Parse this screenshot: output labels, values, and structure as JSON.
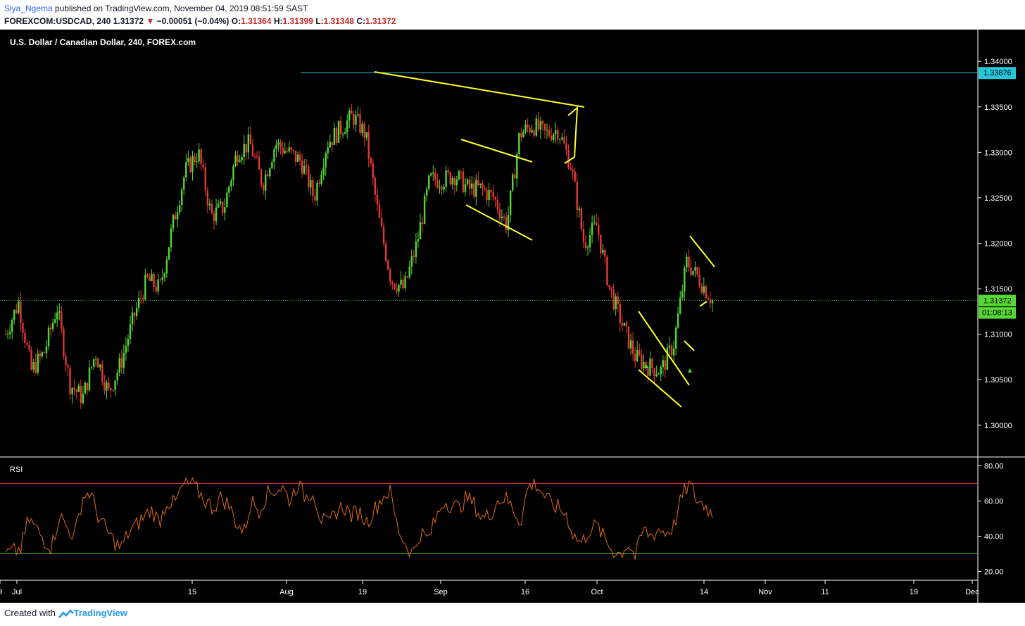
{
  "header": {
    "author": "Siya_Ngema",
    "published": "published on TradingView.com, November 04, 2019 08:51:59 SAST",
    "symbol": "FOREXCOM:USDCAD, 240",
    "last": "1.31372",
    "arrow": "▼",
    "change": "−0.00051 (−0.04%)",
    "o_label": "O:",
    "o_value": "1.31364",
    "h_label": "H:",
    "h_value": "1.31399",
    "l_label": "L:",
    "l_value": "1.31348",
    "c_label": "C:",
    "c_value": "1.31372"
  },
  "chart_data": [
    {
      "type": "candlestick",
      "title": "U.S. Dollar / Canadian Dollar, 240, FOREX.com",
      "ylim": [
        1.2965,
        1.3435
      ],
      "y_ticks": [
        "1.34000",
        "1.33500",
        "1.33000",
        "1.32500",
        "1.32000",
        "1.31500",
        "1.31000",
        "1.30500",
        "1.30000"
      ],
      "y_tick_values": [
        1.34,
        1.335,
        1.33,
        1.325,
        1.32,
        1.315,
        1.31,
        1.305,
        1.3
      ],
      "x_ticks": [
        "Jul",
        "15",
        "Aug",
        "19",
        "Sep",
        "16",
        "Oct",
        "14",
        "Nov",
        "11",
        "19",
        "Dec",
        "9"
      ],
      "horizontal_line": {
        "value": 1.33876,
        "label": "1.33876",
        "color": "#26c6da"
      },
      "last_price": {
        "value": 1.31372,
        "label": "1.31372",
        "countdown": "01:08:13",
        "color": "#26c6da"
      },
      "colors": {
        "up": "#55d636",
        "down": "#e53935",
        "background": "#000000",
        "annotation": "#ffff26"
      },
      "approx_path": [
        {
          "x": "Jul 01",
          "y": 1.31
        },
        {
          "x": "Jul 03",
          "y": 1.3135
        },
        {
          "x": "Jul 05",
          "y": 1.306
        },
        {
          "x": "Jul 08",
          "y": 1.308
        },
        {
          "x": "Jul 10",
          "y": 1.313
        },
        {
          "x": "Jul 12",
          "y": 1.3045
        },
        {
          "x": "Jul 15",
          "y": 1.303
        },
        {
          "x": "Jul 17",
          "y": 1.308
        },
        {
          "x": "Jul 19",
          "y": 1.3035
        },
        {
          "x": "Jul 22",
          "y": 1.307
        },
        {
          "x": "Jul 24",
          "y": 1.312
        },
        {
          "x": "Jul 26",
          "y": 1.316
        },
        {
          "x": "Jul 29",
          "y": 1.315
        },
        {
          "x": "Aug 01",
          "y": 1.322
        },
        {
          "x": "Aug 03",
          "y": 1.328
        },
        {
          "x": "Aug 05",
          "y": 1.33
        },
        {
          "x": "Aug 07",
          "y": 1.323
        },
        {
          "x": "Aug 09",
          "y": 1.324
        },
        {
          "x": "Aug 12",
          "y": 1.33
        },
        {
          "x": "Aug 14",
          "y": 1.331
        },
        {
          "x": "Aug 16",
          "y": 1.3265
        },
        {
          "x": "Aug 19",
          "y": 1.331
        },
        {
          "x": "Aug 21",
          "y": 1.33
        },
        {
          "x": "Aug 23",
          "y": 1.329
        },
        {
          "x": "Aug 26",
          "y": 1.325
        },
        {
          "x": "Aug 28",
          "y": 1.331
        },
        {
          "x": "Aug 30",
          "y": 1.3325
        },
        {
          "x": "Sep 01",
          "y": 1.334
        },
        {
          "x": "Sep 03",
          "y": 1.332
        },
        {
          "x": "Sep 05",
          "y": 1.323
        },
        {
          "x": "Sep 09",
          "y": 1.316
        },
        {
          "x": "Sep 11",
          "y": 1.315
        },
        {
          "x": "Sep 13",
          "y": 1.32
        },
        {
          "x": "Sep 16",
          "y": 1.327
        },
        {
          "x": "Sep 18",
          "y": 1.327
        },
        {
          "x": "Sep 20",
          "y": 1.3275
        },
        {
          "x": "Sep 23",
          "y": 1.326
        },
        {
          "x": "Sep 25",
          "y": 1.326
        },
        {
          "x": "Sep 27",
          "y": 1.325
        },
        {
          "x": "Sep 30",
          "y": 1.322
        },
        {
          "x": "Oct 02",
          "y": 1.332
        },
        {
          "x": "Oct 04",
          "y": 1.333
        },
        {
          "x": "Oct 07",
          "y": 1.332
        },
        {
          "x": "Oct 09",
          "y": 1.3325
        },
        {
          "x": "Oct 11",
          "y": 1.3285
        },
        {
          "x": "Oct 14",
          "y": 1.32
        },
        {
          "x": "Oct 16",
          "y": 1.322
        },
        {
          "x": "Oct 18",
          "y": 1.315
        },
        {
          "x": "Oct 21",
          "y": 1.311
        },
        {
          "x": "Oct 23",
          "y": 1.3075
        },
        {
          "x": "Oct 25",
          "y": 1.3065
        },
        {
          "x": "Oct 28",
          "y": 1.306
        },
        {
          "x": "Oct 30",
          "y": 1.309
        },
        {
          "x": "Oct 31",
          "y": 1.318
        },
        {
          "x": "Nov 01",
          "y": 1.316
        },
        {
          "x": "Nov 04",
          "y": 1.31372
        }
      ]
    },
    {
      "type": "line",
      "title": "RSI",
      "ylim": [
        15,
        85
      ],
      "y_ticks": [
        "80.00",
        "60.00",
        "40.00",
        "20.00"
      ],
      "y_tick_values": [
        80,
        60,
        40,
        20
      ],
      "levels": [
        70,
        30
      ],
      "line_color": "#e06b12",
      "approx_values": [
        30,
        31,
        33,
        50,
        44,
        38,
        34,
        52,
        45,
        40,
        62,
        65,
        52,
        44,
        38,
        33,
        42,
        46,
        51,
        55,
        48,
        60,
        58,
        68,
        70,
        66,
        60,
        56,
        62,
        58,
        48,
        42,
        60,
        55,
        64,
        66,
        68,
        60,
        70,
        62,
        66,
        50,
        46,
        54,
        57,
        52,
        54,
        48,
        55,
        62,
        66,
        45,
        36,
        30,
        42,
        38,
        50,
        60,
        58,
        56,
        62,
        58,
        50,
        52,
        60,
        62,
        56,
        48,
        68,
        70,
        64,
        58,
        56,
        52,
        40,
        36,
        44,
        46,
        38,
        32,
        30,
        36,
        28,
        44,
        40,
        44,
        42,
        46,
        62,
        70,
        60,
        58,
        52
      ],
      "visible_label": "RSI"
    }
  ],
  "footer": {
    "created": "Created with",
    "brand": "TradingView"
  }
}
